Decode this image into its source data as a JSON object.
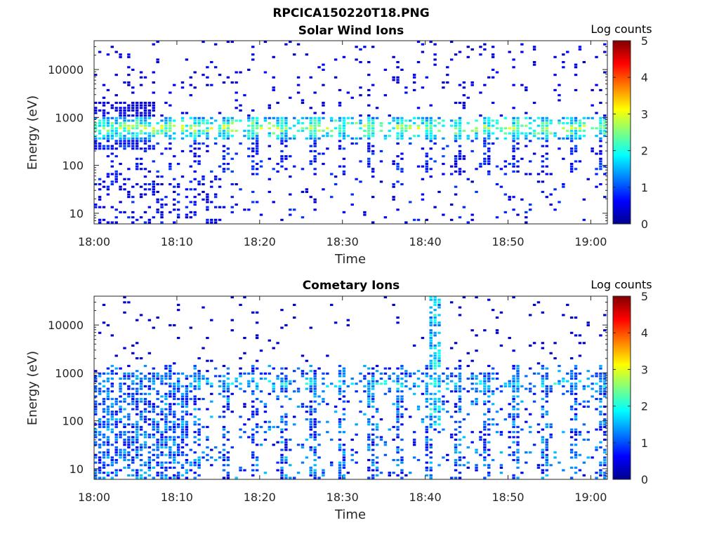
{
  "figure": {
    "title": "RPCICA150220T18.PNG"
  },
  "chart_data": [
    {
      "type": "heatmap",
      "title": "Solar Wind Ions",
      "xlabel": "Time",
      "ylabel": "Energy (eV)",
      "x_ticks": [
        "18:00",
        "18:10",
        "18:20",
        "18:30",
        "18:40",
        "18:50",
        "19:00"
      ],
      "xlim": [
        "18:00",
        "19:02"
      ],
      "y_scale": "log",
      "y_ticks": [
        "10",
        "100",
        "1000",
        "10000"
      ],
      "ylim": [
        6,
        40000
      ],
      "colorbar": {
        "label": "Log counts",
        "ticks": [
          "0",
          "1",
          "2",
          "3",
          "4",
          "5"
        ],
        "range": [
          0,
          5
        ],
        "colormap": "jet"
      },
      "features": [
        {
          "energy": 600,
          "log_counts_peak": 3.0,
          "description_time": "18:00-19:02"
        }
      ]
    },
    {
      "type": "heatmap",
      "title": "Cometary Ions",
      "xlabel": "Time",
      "ylabel": "Energy (eV)",
      "x_ticks": [
        "18:00",
        "18:10",
        "18:20",
        "18:30",
        "18:40",
        "18:50",
        "19:00"
      ],
      "xlim": [
        "18:00",
        "19:02"
      ],
      "y_scale": "log",
      "y_ticks": [
        "10",
        "100",
        "1000",
        "10000"
      ],
      "ylim": [
        6,
        40000
      ],
      "colorbar": {
        "label": "Log counts",
        "ticks": [
          "0",
          "1",
          "2",
          "3",
          "4",
          "5"
        ],
        "range": [
          0,
          5
        ],
        "colormap": "jet"
      },
      "features": [
        {
          "energy": 600,
          "log_counts_peak": 2.0,
          "description_time": "18:00-19:02"
        }
      ]
    }
  ]
}
